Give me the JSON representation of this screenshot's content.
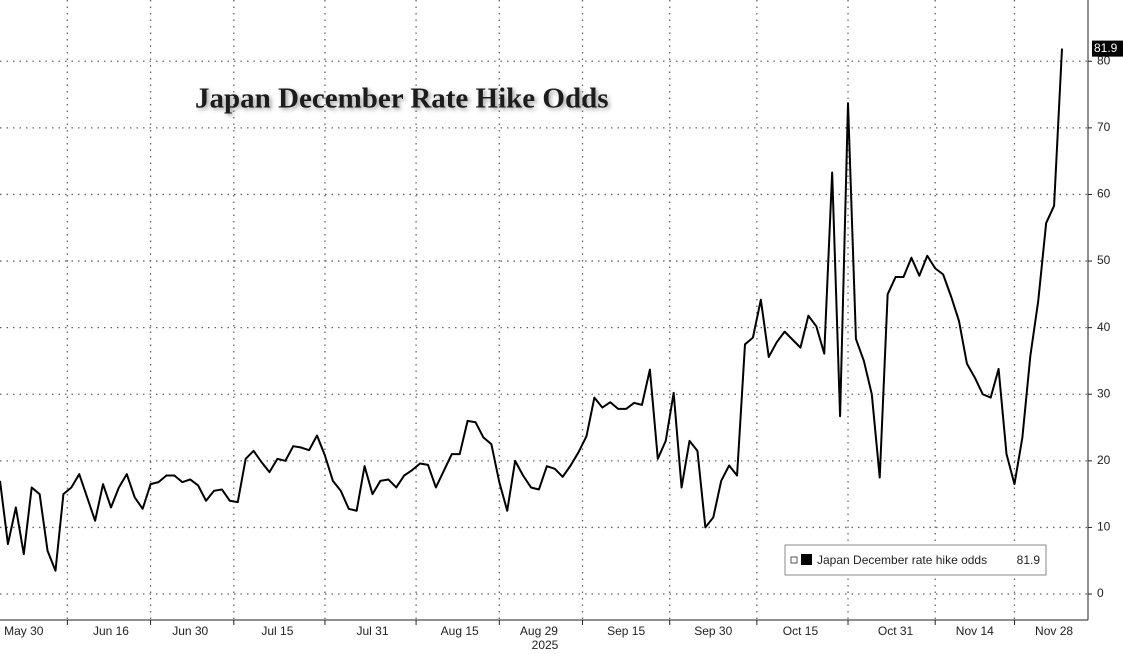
{
  "chart_data": {
    "type": "line",
    "title": "Japan December Rate Hike Odds",
    "xlabel": "2025",
    "categories": [
      null,
      null,
      null,
      "May 30",
      null,
      null,
      null,
      null,
      null,
      null,
      null,
      null,
      null,
      null,
      "Jun 16",
      null,
      null,
      null,
      null,
      null,
      null,
      null,
      null,
      null,
      "Jun 30",
      null,
      null,
      null,
      null,
      null,
      null,
      null,
      null,
      null,
      null,
      "Jul 15",
      null,
      null,
      null,
      null,
      null,
      null,
      null,
      null,
      null,
      null,
      null,
      "Jul 31",
      null,
      null,
      null,
      null,
      null,
      null,
      null,
      null,
      null,
      null,
      "Aug 15",
      null,
      null,
      null,
      null,
      null,
      null,
      null,
      null,
      null,
      "Aug 29",
      null,
      null,
      null,
      null,
      null,
      null,
      null,
      null,
      null,
      null,
      "Sep 15",
      null,
      null,
      null,
      null,
      null,
      null,
      null,
      null,
      null,
      null,
      "Sep 30",
      null,
      null,
      null,
      null,
      null,
      null,
      null,
      null,
      null,
      null,
      "Oct 15",
      null,
      null,
      null,
      null,
      null,
      null,
      null,
      null,
      null,
      null,
      null,
      "Oct 31",
      null,
      null,
      null,
      null,
      null,
      null,
      null,
      null,
      null,
      "Nov 14",
      null,
      null,
      null,
      null,
      null,
      null,
      null,
      null,
      null,
      "Nov 28",
      null
    ],
    "series": [
      {
        "name": "Japan December rate hike odds",
        "color": "#000000",
        "values": [
          17,
          7.5,
          13,
          6,
          16,
          15,
          6.5,
          3.5,
          15,
          16,
          18,
          14.5,
          11,
          16.5,
          13,
          16,
          18,
          14.5,
          12.8,
          16.5,
          16.8,
          17.8,
          17.8,
          16.8,
          17.2,
          16.3,
          14,
          15.5,
          15.7,
          14,
          13.8,
          20.3,
          21.5,
          19.8,
          18.3,
          20.3,
          20,
          22.2,
          22,
          21.6,
          23.8,
          20.8,
          17,
          15.5,
          12.8,
          12.5,
          19.2,
          15,
          17,
          17.2,
          16,
          17.8,
          18.6,
          19.6,
          19.4,
          16,
          18.5,
          21,
          21,
          26,
          25.8,
          23.5,
          22.5,
          16.8,
          12.5,
          20,
          17.8,
          16,
          15.7,
          19.2,
          18.8,
          17.6,
          19.3,
          21.3,
          23.7,
          29.5,
          28,
          28.8,
          27.8,
          27.8,
          28.7,
          28.4,
          33.7,
          20.3,
          23,
          30.2,
          16,
          23,
          21.5,
          10,
          11.5,
          17,
          19.3,
          17.8,
          37.5,
          38.5,
          44.2,
          35.6,
          37.8,
          39.4,
          38.2,
          37,
          41.8,
          40.2,
          36.1,
          63.3,
          26.7,
          73.7,
          38.3,
          35,
          30,
          17.5,
          45,
          47.6,
          47.6,
          50.5,
          47.8,
          50.8,
          48.9,
          48,
          44.7,
          41,
          34.6,
          32.5,
          30,
          29.5,
          33.8,
          21,
          16.5,
          23.5,
          35.7,
          44,
          55.7,
          58.3,
          81.9
        ]
      }
    ],
    "ylim": [
      -3.9,
      89.2
    ],
    "yticks": [
      0,
      10,
      20,
      30,
      40,
      50,
      60,
      70,
      80
    ],
    "grid": true
  }
}
